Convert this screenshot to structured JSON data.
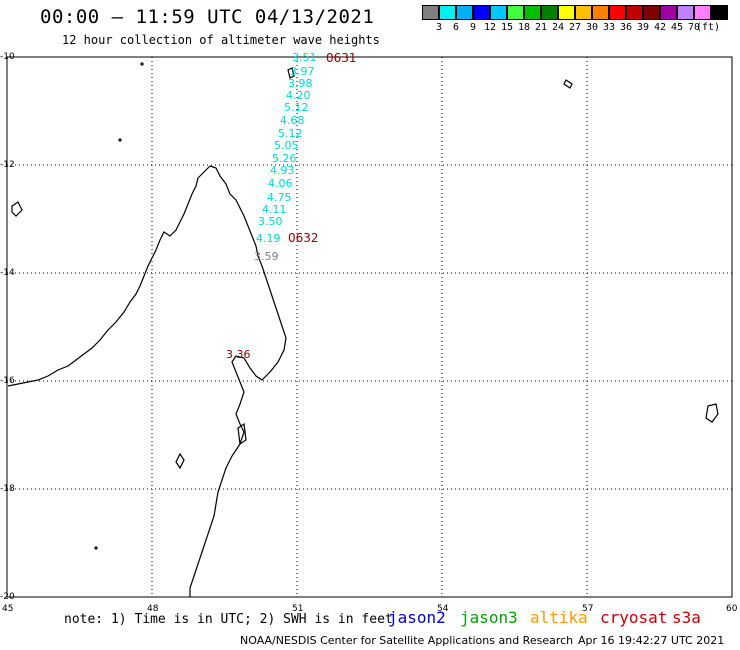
{
  "title": "00:00 – 11:59 UTC 04/13/2021",
  "subtitle": "12 hour collection of altimeter wave heights",
  "legend": {
    "unit": "(ft)",
    "colors": [
      "#808080",
      "#00f0f0",
      "#00b0f0",
      "#0000ff",
      "#00c8ff",
      "#40ff40",
      "#00c000",
      "#008000",
      "#ffff00",
      "#ffc000",
      "#ff8000",
      "#ff0000",
      "#c00000",
      "#800000",
      "#a000a0",
      "#c080ff",
      "#ff80ff",
      "#000000"
    ],
    "labels": [
      "3",
      "6",
      "9",
      "12",
      "15",
      "18",
      "21",
      "24",
      "27",
      "30",
      "33",
      "36",
      "39",
      "42",
      "45",
      "70"
    ]
  },
  "lat_labels": [
    "-10",
    "-12",
    "-14",
    "-16",
    "-18",
    "-20"
  ],
  "lon_labels": [
    "45",
    "48",
    "51",
    "54",
    "57",
    "60"
  ],
  "pass_labels": [
    "0631",
    "0632"
  ],
  "wave_values": [
    "3.51",
    "3.97",
    "3.98",
    "4.20",
    "5.12",
    "4.68",
    "5.12",
    "5.05",
    "5.26",
    "4.93",
    "4.06",
    "4.75",
    "4.11",
    "3.50",
    "4.19"
  ],
  "gray_value": "3.59",
  "other_value": "3.36",
  "note": "note: 1) Time is in UTC; 2) SWH is in feet",
  "satellites": [
    {
      "name": "jason2",
      "color": "#0000cc"
    },
    {
      "name": "jason3",
      "color": "#00a000"
    },
    {
      "name": "altika",
      "color": "#ff9900"
    },
    {
      "name": "cryosat",
      "color": "#cc0000"
    },
    {
      "name": "s3a",
      "color": "#cc0000"
    }
  ],
  "credit": "NOAA/NESDIS Center for Satellite Applications and Research",
  "timestamp": "Apr 16 19:42:27 UTC 2021"
}
